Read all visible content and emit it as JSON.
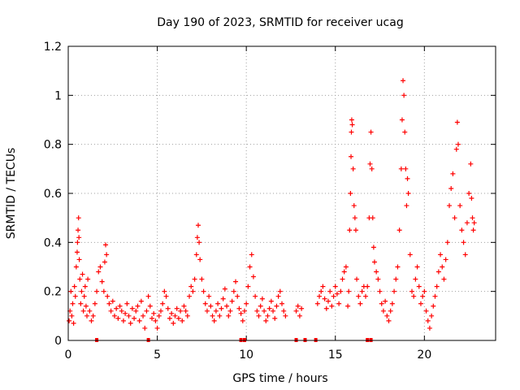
{
  "chart_data": {
    "type": "scatter",
    "title": "Day 190 of 2023, SRMTID for receiver ucag",
    "xlabel": "GPS time / hours",
    "ylabel": "SRMTID / TECUs",
    "xlim": [
      0,
      24
    ],
    "ylim": [
      0,
      1.2
    ],
    "x_ticks": [
      0,
      5,
      10,
      15,
      20
    ],
    "x_tick_labels": [
      "0",
      "5",
      "10",
      "15",
      "20"
    ],
    "y_ticks": [
      0,
      0.2,
      0.4,
      0.6,
      0.8,
      1.0,
      1.2
    ],
    "y_tick_labels": [
      "0",
      "0.2",
      "0.4",
      "0.6",
      "0.8",
      "1",
      "1.2"
    ],
    "grid": true,
    "marker": "+",
    "color": "#ff0000",
    "series": [
      {
        "name": "SRMTID",
        "points": [
          [
            0.05,
            0.08
          ],
          [
            0.1,
            0.12
          ],
          [
            0.15,
            0.2
          ],
          [
            0.2,
            0.1
          ],
          [
            0.25,
            0.15
          ],
          [
            0.3,
            0.07
          ],
          [
            0.35,
            0.22
          ],
          [
            0.4,
            0.18
          ],
          [
            0.45,
            0.3
          ],
          [
            0.5,
            0.36
          ],
          [
            0.52,
            0.4
          ],
          [
            0.55,
            0.45
          ],
          [
            0.58,
            0.5
          ],
          [
            0.6,
            0.42
          ],
          [
            0.62,
            0.33
          ],
          [
            0.65,
            0.25
          ],
          [
            0.7,
            0.15
          ],
          [
            0.75,
            0.2
          ],
          [
            0.8,
            0.27
          ],
          [
            0.85,
            0.12
          ],
          [
            0.9,
            0.18
          ],
          [
            0.95,
            0.22
          ],
          [
            1.0,
            0.14
          ],
          [
            1.05,
            0.1
          ],
          [
            1.1,
            0.25
          ],
          [
            1.2,
            0.12
          ],
          [
            1.3,
            0.08
          ],
          [
            1.4,
            0.1
          ],
          [
            1.5,
            0.15
          ],
          [
            1.6,
            0.2
          ],
          [
            1.7,
            0.28
          ],
          [
            1.8,
            0.3
          ],
          [
            1.9,
            0.24
          ],
          [
            2.0,
            0.2
          ],
          [
            2.05,
            0.32
          ],
          [
            2.1,
            0.39
          ],
          [
            2.15,
            0.35
          ],
          [
            2.2,
            0.18
          ],
          [
            2.3,
            0.15
          ],
          [
            2.4,
            0.12
          ],
          [
            2.5,
            0.16
          ],
          [
            2.6,
            0.1
          ],
          [
            2.7,
            0.13
          ],
          [
            2.8,
            0.09
          ],
          [
            2.9,
            0.14
          ],
          [
            3.0,
            0.12
          ],
          [
            3.1,
            0.08
          ],
          [
            3.2,
            0.11
          ],
          [
            3.3,
            0.15
          ],
          [
            3.4,
            0.1
          ],
          [
            3.5,
            0.07
          ],
          [
            3.6,
            0.13
          ],
          [
            3.7,
            0.09
          ],
          [
            3.8,
            0.12
          ],
          [
            3.9,
            0.14
          ],
          [
            4.0,
            0.08
          ],
          [
            4.1,
            0.16
          ],
          [
            4.2,
            0.1
          ],
          [
            4.3,
            0.05
          ],
          [
            4.4,
            0.12
          ],
          [
            4.5,
            0.18
          ],
          [
            4.6,
            0.14
          ],
          [
            4.7,
            0.09
          ],
          [
            4.8,
            0.11
          ],
          [
            4.9,
            0.08
          ],
          [
            5.0,
            0.05
          ],
          [
            5.1,
            0.1
          ],
          [
            5.2,
            0.12
          ],
          [
            5.3,
            0.15
          ],
          [
            5.4,
            0.2
          ],
          [
            5.5,
            0.18
          ],
          [
            5.6,
            0.13
          ],
          [
            5.7,
            0.09
          ],
          [
            5.8,
            0.11
          ],
          [
            5.9,
            0.07
          ],
          [
            6.0,
            0.1
          ],
          [
            6.1,
            0.13
          ],
          [
            6.2,
            0.09
          ],
          [
            6.3,
            0.12
          ],
          [
            6.4,
            0.08
          ],
          [
            6.5,
            0.14
          ],
          [
            6.6,
            0.12
          ],
          [
            6.7,
            0.1
          ],
          [
            6.8,
            0.18
          ],
          [
            6.9,
            0.22
          ],
          [
            7.0,
            0.2
          ],
          [
            7.1,
            0.25
          ],
          [
            7.2,
            0.35
          ],
          [
            7.25,
            0.42
          ],
          [
            7.3,
            0.47
          ],
          [
            7.35,
            0.4
          ],
          [
            7.4,
            0.33
          ],
          [
            7.5,
            0.25
          ],
          [
            7.6,
            0.2
          ],
          [
            7.7,
            0.15
          ],
          [
            7.8,
            0.12
          ],
          [
            7.9,
            0.18
          ],
          [
            8.0,
            0.14
          ],
          [
            8.1,
            0.1
          ],
          [
            8.2,
            0.08
          ],
          [
            8.3,
            0.12
          ],
          [
            8.4,
            0.15
          ],
          [
            8.5,
            0.1
          ],
          [
            8.6,
            0.13
          ],
          [
            8.7,
            0.17
          ],
          [
            8.8,
            0.21
          ],
          [
            8.9,
            0.14
          ],
          [
            9.0,
            0.1
          ],
          [
            9.1,
            0.12
          ],
          [
            9.2,
            0.16
          ],
          [
            9.3,
            0.2
          ],
          [
            9.4,
            0.24
          ],
          [
            9.5,
            0.18
          ],
          [
            9.6,
            0.13
          ],
          [
            9.7,
            0.11
          ],
          [
            9.8,
            0.08
          ],
          [
            9.9,
            0.12
          ],
          [
            10.0,
            0.15
          ],
          [
            10.1,
            0.22
          ],
          [
            10.2,
            0.3
          ],
          [
            10.3,
            0.35
          ],
          [
            10.4,
            0.26
          ],
          [
            10.5,
            0.18
          ],
          [
            10.6,
            0.12
          ],
          [
            10.7,
            0.1
          ],
          [
            10.8,
            0.14
          ],
          [
            10.9,
            0.17
          ],
          [
            11.0,
            0.12
          ],
          [
            11.1,
            0.08
          ],
          [
            11.2,
            0.1
          ],
          [
            11.3,
            0.13
          ],
          [
            11.4,
            0.16
          ],
          [
            11.5,
            0.12
          ],
          [
            11.6,
            0.09
          ],
          [
            11.7,
            0.14
          ],
          [
            11.8,
            0.18
          ],
          [
            11.9,
            0.2
          ],
          [
            12.0,
            0.15
          ],
          [
            12.1,
            0.12
          ],
          [
            12.2,
            0.1
          ],
          [
            12.8,
            0.12
          ],
          [
            12.9,
            0.14
          ],
          [
            13.0,
            0.1
          ],
          [
            13.1,
            0.13
          ],
          [
            14.0,
            0.15
          ],
          [
            14.1,
            0.18
          ],
          [
            14.2,
            0.2
          ],
          [
            14.3,
            0.22
          ],
          [
            14.4,
            0.17
          ],
          [
            14.5,
            0.13
          ],
          [
            14.6,
            0.16
          ],
          [
            14.7,
            0.2
          ],
          [
            14.8,
            0.14
          ],
          [
            14.9,
            0.18
          ],
          [
            15.0,
            0.22
          ],
          [
            15.1,
            0.19
          ],
          [
            15.2,
            0.15
          ],
          [
            15.3,
            0.2
          ],
          [
            15.4,
            0.25
          ],
          [
            15.5,
            0.28
          ],
          [
            15.6,
            0.3
          ],
          [
            15.7,
            0.14
          ],
          [
            15.75,
            0.2
          ],
          [
            15.8,
            0.45
          ],
          [
            15.85,
            0.6
          ],
          [
            15.88,
            0.75
          ],
          [
            15.9,
            0.85
          ],
          [
            15.92,
            0.9
          ],
          [
            15.95,
            0.88
          ],
          [
            16.0,
            0.7
          ],
          [
            16.05,
            0.55
          ],
          [
            16.1,
            0.5
          ],
          [
            16.15,
            0.45
          ],
          [
            16.2,
            0.25
          ],
          [
            16.3,
            0.18
          ],
          [
            16.4,
            0.15
          ],
          [
            16.5,
            0.2
          ],
          [
            16.6,
            0.22
          ],
          [
            16.7,
            0.18
          ],
          [
            16.8,
            0.22
          ],
          [
            16.9,
            0.5
          ],
          [
            16.95,
            0.72
          ],
          [
            17.0,
            0.85
          ],
          [
            17.05,
            0.7
          ],
          [
            17.1,
            0.5
          ],
          [
            17.15,
            0.38
          ],
          [
            17.2,
            0.32
          ],
          [
            17.3,
            0.28
          ],
          [
            17.4,
            0.25
          ],
          [
            17.5,
            0.2
          ],
          [
            17.6,
            0.15
          ],
          [
            17.7,
            0.12
          ],
          [
            17.8,
            0.16
          ],
          [
            17.9,
            0.1
          ],
          [
            18.0,
            0.08
          ],
          [
            18.1,
            0.12
          ],
          [
            18.2,
            0.15
          ],
          [
            18.3,
            0.2
          ],
          [
            18.4,
            0.25
          ],
          [
            18.5,
            0.3
          ],
          [
            18.6,
            0.45
          ],
          [
            18.7,
            0.7
          ],
          [
            18.75,
            0.9
          ],
          [
            18.8,
            1.06
          ],
          [
            18.85,
            1.0
          ],
          [
            18.9,
            0.85
          ],
          [
            18.95,
            0.7
          ],
          [
            19.0,
            0.55
          ],
          [
            19.05,
            0.66
          ],
          [
            19.1,
            0.6
          ],
          [
            19.2,
            0.35
          ],
          [
            19.3,
            0.2
          ],
          [
            19.4,
            0.18
          ],
          [
            19.5,
            0.25
          ],
          [
            19.6,
            0.3
          ],
          [
            19.7,
            0.22
          ],
          [
            19.8,
            0.15
          ],
          [
            19.9,
            0.18
          ],
          [
            20.0,
            0.2
          ],
          [
            20.1,
            0.12
          ],
          [
            20.2,
            0.08
          ],
          [
            20.3,
            0.05
          ],
          [
            20.4,
            0.1
          ],
          [
            20.5,
            0.14
          ],
          [
            20.6,
            0.18
          ],
          [
            20.7,
            0.22
          ],
          [
            20.8,
            0.28
          ],
          [
            20.9,
            0.35
          ],
          [
            21.0,
            0.3
          ],
          [
            21.1,
            0.25
          ],
          [
            21.2,
            0.33
          ],
          [
            21.3,
            0.4
          ],
          [
            21.4,
            0.55
          ],
          [
            21.5,
            0.62
          ],
          [
            21.6,
            0.68
          ],
          [
            21.7,
            0.5
          ],
          [
            21.8,
            0.78
          ],
          [
            21.85,
            0.89
          ],
          [
            21.9,
            0.8
          ],
          [
            22.0,
            0.55
          ],
          [
            22.1,
            0.45
          ],
          [
            22.2,
            0.4
          ],
          [
            22.3,
            0.35
          ],
          [
            22.4,
            0.48
          ],
          [
            22.5,
            0.6
          ],
          [
            22.6,
            0.72
          ],
          [
            22.65,
            0.58
          ],
          [
            22.7,
            0.5
          ],
          [
            22.75,
            0.45
          ],
          [
            22.8,
            0.48
          ]
        ]
      }
    ],
    "rug_marks_x": [
      1.6,
      4.5,
      9.7,
      9.9,
      12.8,
      13.3,
      13.9,
      16.8,
      17.0
    ]
  }
}
